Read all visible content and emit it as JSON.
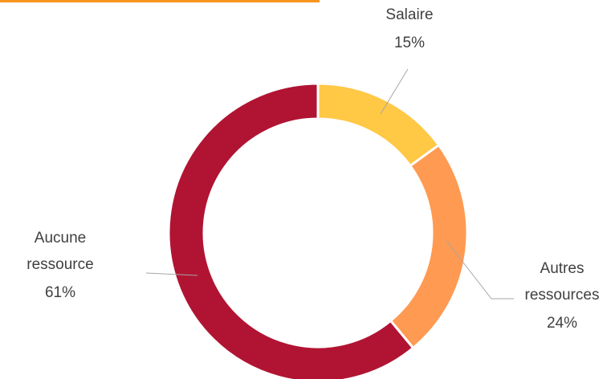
{
  "chart_data": {
    "type": "donut",
    "categories": [
      "Salaire",
      "Autres ressources",
      "Aucune ressource"
    ],
    "values": [
      15,
      24,
      61
    ],
    "value_labels": [
      "15%",
      "24%",
      "61%"
    ],
    "colors": [
      "#FFC845",
      "#FF9A52",
      "#B11433"
    ]
  }
}
